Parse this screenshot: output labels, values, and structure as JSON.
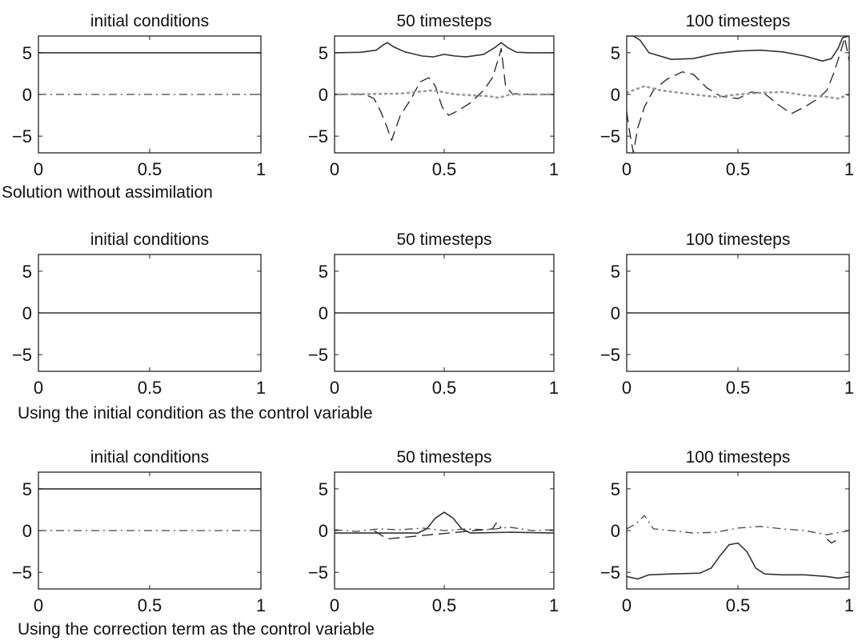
{
  "figure": {
    "rows": [
      {
        "caption": "Solution without assimilation"
      },
      {
        "caption": "Using the initial condition as the control variable"
      },
      {
        "caption": "Using the correction term as the control variable"
      }
    ]
  },
  "chart_data": [
    {
      "type": "line",
      "title": "initial conditions",
      "xlim": [
        0,
        1
      ],
      "ylim": [
        -7,
        7
      ],
      "xticks": [
        0,
        0.5,
        1
      ],
      "xtick_labels": [
        "0",
        "0.5",
        "1"
      ],
      "yticks": [
        5,
        0,
        -5
      ],
      "ytick_labels": [
        "5",
        "0",
        "−5"
      ],
      "series": [
        {
          "style": "solid",
          "x": [
            0,
            1
          ],
          "y": [
            5,
            5
          ]
        },
        {
          "style": "dashdot",
          "x": [
            0,
            1
          ],
          "y": [
            0,
            0
          ]
        }
      ]
    },
    {
      "type": "line",
      "title": "50 timesteps",
      "xlim": [
        0,
        1
      ],
      "ylim": [
        -7,
        7
      ],
      "xticks": [
        0,
        0.5,
        1
      ],
      "xtick_labels": [
        "0",
        "0.5",
        "1"
      ],
      "yticks": [
        5,
        0,
        -5
      ],
      "ytick_labels": [
        "5",
        "0",
        "−5"
      ],
      "series": [
        {
          "style": "solid",
          "x": [
            0,
            0.12,
            0.19,
            0.22,
            0.24,
            0.27,
            0.32,
            0.4,
            0.45,
            0.5,
            0.55,
            0.6,
            0.68,
            0.73,
            0.76,
            0.79,
            0.83,
            0.9,
            1
          ],
          "y": [
            5,
            5.05,
            5.3,
            5.9,
            6.2,
            5.7,
            5.1,
            4.6,
            4.5,
            4.8,
            4.6,
            4.5,
            4.8,
            5.6,
            6.2,
            5.6,
            5.05,
            5,
            5
          ]
        },
        {
          "style": "dashed",
          "x": [
            0,
            0.14,
            0.18,
            0.21,
            0.24,
            0.26,
            0.3,
            0.35,
            0.39,
            0.43,
            0.46,
            0.49,
            0.52,
            0.56,
            0.62,
            0.68,
            0.72,
            0.75,
            0.76,
            0.78,
            0.81,
            0.9,
            1
          ],
          "y": [
            0,
            0,
            -0.5,
            -2,
            -4,
            -5.5,
            -2.5,
            -0.5,
            1.5,
            2,
            1,
            -1.5,
            -2.5,
            -2,
            -1,
            0.5,
            2,
            4.5,
            5.5,
            1,
            0.1,
            0,
            0
          ]
        },
        {
          "style": "dotted",
          "x": [
            0,
            0.3,
            0.45,
            0.55,
            0.7,
            0.75,
            0.8,
            1
          ],
          "y": [
            0,
            0.1,
            0.5,
            0,
            -0.2,
            -0.4,
            0,
            0
          ]
        }
      ]
    },
    {
      "type": "line",
      "title": "100 timesteps",
      "xlim": [
        0,
        1
      ],
      "ylim": [
        -7,
        7
      ],
      "xticks": [
        0,
        0.5,
        1
      ],
      "xtick_labels": [
        "0",
        "0.5",
        "1"
      ],
      "yticks": [
        5,
        0,
        -5
      ],
      "ytick_labels": [
        "5",
        "0",
        "−5"
      ],
      "series": [
        {
          "style": "solid",
          "x": [
            0,
            0.03,
            0.06,
            0.1,
            0.2,
            0.3,
            0.4,
            0.5,
            0.6,
            0.7,
            0.8,
            0.88,
            0.92,
            0.95,
            0.97,
            1
          ],
          "y": [
            7,
            7,
            6.5,
            5,
            4.2,
            4.3,
            4.9,
            5.2,
            5.3,
            5.1,
            4.6,
            4,
            4.3,
            5.5,
            6.8,
            7
          ]
        },
        {
          "style": "dashed",
          "x": [
            0,
            0.01,
            0.03,
            0.05,
            0.08,
            0.12,
            0.18,
            0.25,
            0.3,
            0.36,
            0.42,
            0.5,
            0.56,
            0.62,
            0.68,
            0.74,
            0.8,
            0.86,
            0.9,
            0.93,
            0.96,
            0.98,
            1
          ],
          "y": [
            -2,
            -4,
            -7,
            -4,
            -1.5,
            0.5,
            1.8,
            2.7,
            2.4,
            0.8,
            -0.2,
            -0.5,
            0.3,
            0.1,
            -1.2,
            -2.3,
            -1.5,
            -0.5,
            0.5,
            2.5,
            5,
            6.8,
            4
          ]
        },
        {
          "style": "dotted",
          "x": [
            0,
            0.08,
            0.15,
            0.3,
            0.4,
            0.5,
            0.6,
            0.7,
            0.8,
            0.9,
            0.95,
            1
          ],
          "y": [
            0.2,
            1,
            0.5,
            0,
            -0.3,
            0,
            0.2,
            0.3,
            -0.1,
            -0.3,
            -0.5,
            0
          ]
        }
      ]
    },
    {
      "type": "line",
      "title": "initial conditions",
      "xlim": [
        0,
        1
      ],
      "ylim": [
        -7,
        7
      ],
      "xticks": [
        0,
        0.5,
        1
      ],
      "xtick_labels": [
        "0",
        "0.5",
        "1"
      ],
      "yticks": [
        5,
        0,
        -5
      ],
      "ytick_labels": [
        "5",
        "0",
        "−5"
      ],
      "series": [
        {
          "style": "solid",
          "x": [
            0,
            1
          ],
          "y": [
            0,
            0
          ]
        }
      ]
    },
    {
      "type": "line",
      "title": "50 timesteps",
      "xlim": [
        0,
        1
      ],
      "ylim": [
        -7,
        7
      ],
      "xticks": [
        0,
        0.5,
        1
      ],
      "xtick_labels": [
        "0",
        "0.5",
        "1"
      ],
      "yticks": [
        5,
        0,
        -5
      ],
      "ytick_labels": [
        "5",
        "0",
        "−5"
      ],
      "series": [
        {
          "style": "solid",
          "x": [
            0,
            1
          ],
          "y": [
            0,
            0
          ]
        }
      ]
    },
    {
      "type": "line",
      "title": "100 timesteps",
      "xlim": [
        0,
        1
      ],
      "ylim": [
        -7,
        7
      ],
      "xticks": [
        0,
        0.5,
        1
      ],
      "xtick_labels": [
        "0",
        "0.5",
        "1"
      ],
      "yticks": [
        5,
        0,
        -5
      ],
      "ytick_labels": [
        "5",
        "0",
        "−5"
      ],
      "series": [
        {
          "style": "solid",
          "x": [
            0,
            1
          ],
          "y": [
            0,
            0
          ]
        }
      ]
    },
    {
      "type": "line",
      "title": "initial conditions",
      "xlim": [
        0,
        1
      ],
      "ylim": [
        -7,
        7
      ],
      "xticks": [
        0,
        0.5,
        1
      ],
      "xtick_labels": [
        "0",
        "0.5",
        "1"
      ],
      "yticks": [
        5,
        0,
        -5
      ],
      "ytick_labels": [
        "5",
        "0",
        "−5"
      ],
      "series": [
        {
          "style": "solid",
          "x": [
            0,
            1
          ],
          "y": [
            5,
            5
          ]
        },
        {
          "style": "dashdot",
          "x": [
            0,
            1
          ],
          "y": [
            0,
            0
          ]
        }
      ]
    },
    {
      "type": "line",
      "title": "50 timesteps",
      "xlim": [
        0,
        1
      ],
      "ylim": [
        -7,
        7
      ],
      "xticks": [
        0,
        0.5,
        1
      ],
      "xtick_labels": [
        "0",
        "0.5",
        "1"
      ],
      "yticks": [
        5,
        0,
        -5
      ],
      "ytick_labels": [
        "5",
        "0",
        "−5"
      ],
      "series": [
        {
          "style": "solid",
          "x": [
            0,
            0.2,
            0.38,
            0.42,
            0.46,
            0.5,
            0.54,
            0.58,
            0.62,
            0.8,
            1
          ],
          "y": [
            -0.3,
            -0.3,
            -0.3,
            0.2,
            1.5,
            2.2,
            1.5,
            0.2,
            -0.3,
            -0.2,
            -0.3
          ]
        },
        {
          "style": "dashdot",
          "x": [
            0,
            0.1,
            0.2,
            0.3,
            0.4,
            0.5,
            0.6,
            0.7,
            0.8,
            0.9,
            1
          ],
          "y": [
            0.1,
            -0.1,
            0.2,
            0.1,
            0.3,
            0,
            0.2,
            0.1,
            0.4,
            0,
            0.1
          ]
        },
        {
          "style": "dashed",
          "x": [
            0.18,
            0.21,
            0.24,
            0.72,
            0.74,
            0.76
          ],
          "y": [
            0,
            -0.5,
            -1,
            0.2,
            1,
            0.3
          ]
        }
      ]
    },
    {
      "type": "line",
      "title": "100 timesteps",
      "xlim": [
        0,
        1
      ],
      "ylim": [
        -7,
        7
      ],
      "xticks": [
        0,
        0.5,
        1
      ],
      "xtick_labels": [
        "0",
        "0.5",
        "1"
      ],
      "yticks": [
        5,
        0,
        -5
      ],
      "ytick_labels": [
        "5",
        "0",
        "−5"
      ],
      "series": [
        {
          "style": "solid",
          "x": [
            0,
            0.05,
            0.1,
            0.2,
            0.33,
            0.38,
            0.42,
            0.46,
            0.5,
            0.54,
            0.58,
            0.62,
            0.7,
            0.8,
            0.9,
            0.95,
            1
          ],
          "y": [
            -5.5,
            -5.8,
            -5.3,
            -5.2,
            -5.1,
            -4.5,
            -3,
            -1.7,
            -1.5,
            -2.5,
            -4.5,
            -5.2,
            -5.3,
            -5.3,
            -5.5,
            -5.7,
            -5.5
          ]
        },
        {
          "style": "dashdot",
          "x": [
            0,
            0.04,
            0.08,
            0.12,
            0.2,
            0.3,
            0.4,
            0.5,
            0.6,
            0.7,
            0.8,
            0.9,
            1
          ],
          "y": [
            0.2,
            0.8,
            1.8,
            0.2,
            0,
            -0.3,
            -0.2,
            0.3,
            0.5,
            0.2,
            0,
            -0.5,
            0
          ]
        },
        {
          "style": "dashed",
          "x": [
            0.9,
            0.92,
            0.94,
            0.95
          ],
          "y": [
            -1,
            -1.5,
            -1.2,
            -0.8
          ]
        }
      ]
    }
  ]
}
